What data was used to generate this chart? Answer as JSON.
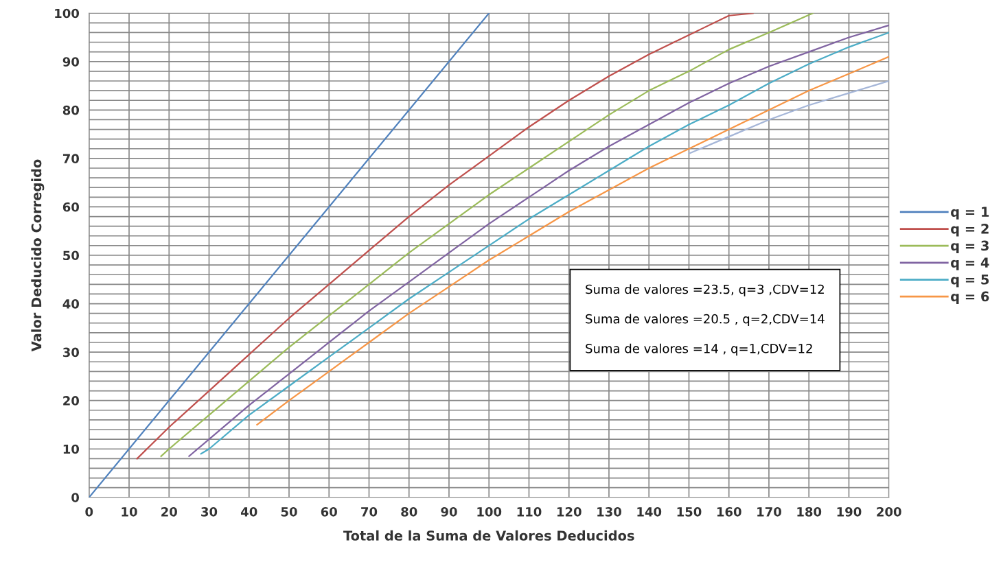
{
  "chart_data": {
    "type": "line",
    "xlabel": "Total de la Suma de Valores Deducidos",
    "ylabel": "Valor Deducido Corregido",
    "xlim": [
      0,
      200
    ],
    "xticks": [
      0,
      10,
      20,
      30,
      40,
      50,
      60,
      70,
      80,
      90,
      100,
      110,
      120,
      130,
      140,
      150,
      160,
      170,
      180,
      190,
      200
    ],
    "ylim": [
      0,
      100
    ],
    "yticks": [
      0,
      {
        "value": 2,
        "label": null
      },
      {
        "value": 4,
        "label": null
      },
      {
        "value": 6,
        "label": null
      },
      {
        "value": 8,
        "label": null
      },
      10,
      {
        "value": 12,
        "label": null
      },
      {
        "value": 14,
        "label": null
      },
      {
        "value": 16,
        "label": null
      },
      {
        "value": 18,
        "label": null
      },
      20,
      {
        "value": 22,
        "label": null
      },
      {
        "value": 24,
        "label": null
      },
      {
        "value": 26,
        "label": null
      },
      {
        "value": 28,
        "label": null
      },
      30,
      {
        "value": 32,
        "label": null
      },
      {
        "value": 34,
        "label": null
      },
      {
        "value": 36,
        "label": null
      },
      {
        "value": 38,
        "label": null
      },
      40,
      {
        "value": 42,
        "label": null
      },
      {
        "value": 44,
        "label": null
      },
      {
        "value": 46,
        "label": null
      },
      {
        "value": 48,
        "label": null
      },
      50,
      {
        "value": 52,
        "label": null
      },
      {
        "value": 54,
        "label": null
      },
      {
        "value": 56,
        "label": null
      },
      {
        "value": 58,
        "label": null
      },
      60,
      {
        "value": 62,
        "label": null
      },
      {
        "value": 64,
        "label": null
      },
      {
        "value": 66,
        "label": null
      },
      {
        "value": 68,
        "label": null
      },
      70,
      {
        "value": 72,
        "label": null
      },
      {
        "value": 74,
        "label": null
      },
      {
        "value": 76,
        "label": null
      },
      {
        "value": 78,
        "label": null
      },
      80,
      {
        "value": 82,
        "label": null
      },
      {
        "value": 84,
        "label": null
      },
      {
        "value": 86,
        "label": null
      },
      {
        "value": 88,
        "label": null
      },
      90,
      {
        "value": 92,
        "label": null
      },
      {
        "value": 94,
        "label": null
      },
      {
        "value": 96,
        "label": null
      },
      {
        "value": 98,
        "label": null
      },
      100
    ],
    "grid": true,
    "legend": "right",
    "marker": "none",
    "line_style": "solid",
    "series": [
      {
        "name": "q = 1",
        "color": "#4f81bd",
        "x": [
          0,
          100
        ],
        "values": [
          0,
          100
        ]
      },
      {
        "name": "q = 2",
        "color": "#c0504d",
        "x": [
          12,
          20,
          30,
          40,
          50,
          60,
          70,
          80,
          90,
          100,
          110,
          120,
          130,
          140,
          150,
          160,
          166
        ],
        "values": [
          8,
          14.5,
          22,
          29.5,
          37,
          44,
          51,
          58,
          64.5,
          70.5,
          76.5,
          82,
          87,
          91.5,
          95.5,
          99.5,
          100
        ]
      },
      {
        "name": "q = 3",
        "color": "#9bbb59",
        "x": [
          18,
          20,
          30,
          40,
          50,
          60,
          70,
          80,
          90,
          100,
          110,
          120,
          130,
          140,
          150,
          160,
          170,
          181
        ],
        "values": [
          8.5,
          10,
          17,
          24,
          31,
          37.5,
          44,
          50.5,
          56.5,
          62.5,
          68,
          73.5,
          79,
          84,
          88,
          92.5,
          96,
          100
        ]
      },
      {
        "name": "q = 4",
        "color": "#8064a2",
        "x": [
          25,
          30,
          40,
          50,
          60,
          70,
          80,
          90,
          100,
          110,
          120,
          130,
          140,
          150,
          160,
          170,
          180,
          190,
          200
        ],
        "values": [
          8.5,
          12,
          19,
          25.5,
          32,
          38.5,
          44.5,
          50.5,
          56.5,
          62,
          67.5,
          72.5,
          77,
          81.5,
          85.5,
          89,
          92,
          95,
          97.5
        ]
      },
      {
        "name": "q = 5",
        "color": "#4bacc6",
        "x": [
          28,
          30,
          40,
          50,
          60,
          70,
          80,
          90,
          100,
          110,
          120,
          130,
          140,
          150,
          160,
          170,
          180,
          190,
          200
        ],
        "values": [
          9,
          10,
          17,
          23,
          29,
          35,
          41,
          46.5,
          52,
          57.5,
          62.5,
          67.5,
          72.5,
          77,
          81,
          85.5,
          89.5,
          93,
          96
        ]
      },
      {
        "color": "#a5b6d8",
        "x": [
          150,
          160,
          170,
          180,
          190,
          200
        ],
        "values": [
          71,
          74.5,
          78,
          81,
          83.5,
          86
        ]
      },
      {
        "name": "q = 6",
        "color": "#f79646",
        "x": [
          42,
          50,
          60,
          70,
          80,
          90,
          100,
          110,
          120,
          130,
          140,
          150,
          160,
          170,
          180,
          190,
          200
        ],
        "values": [
          15,
          20,
          26,
          32,
          38,
          43.5,
          49,
          54,
          59,
          63.5,
          68,
          72,
          76,
          80,
          84,
          87.5,
          91
        ]
      }
    ],
    "annotations": [
      "Suma de valores =23.5, q=3 ,CDV=12",
      "Suma de valores =20.5 , q=2,CDV=14",
      "Suma de valores =14 , q=1,CDV=12"
    ]
  }
}
